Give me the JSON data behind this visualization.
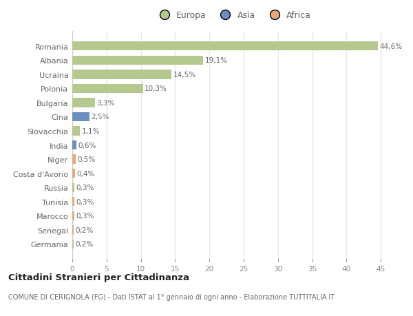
{
  "countries": [
    "Romania",
    "Albania",
    "Ucraina",
    "Polonia",
    "Bulgaria",
    "Cina",
    "Slovacchia",
    "India",
    "Niger",
    "Costa d'Avorio",
    "Russia",
    "Tunisia",
    "Marocco",
    "Senegal",
    "Germania"
  ],
  "values": [
    44.6,
    19.1,
    14.5,
    10.3,
    3.3,
    2.5,
    1.1,
    0.6,
    0.5,
    0.4,
    0.3,
    0.3,
    0.3,
    0.2,
    0.2
  ],
  "labels": [
    "44,6%",
    "19,1%",
    "14,5%",
    "10,3%",
    "3,3%",
    "2,5%",
    "1,1%",
    "0,6%",
    "0,5%",
    "0,4%",
    "0,3%",
    "0,3%",
    "0,3%",
    "0,2%",
    "0,2%"
  ],
  "categories": [
    "Europa",
    "Europa",
    "Europa",
    "Europa",
    "Europa",
    "Asia",
    "Europa",
    "Asia",
    "Africa",
    "Africa",
    "Europa",
    "Africa",
    "Africa",
    "Africa",
    "Europa"
  ],
  "colors": {
    "Europa": "#b5c98e",
    "Asia": "#6b8fbe",
    "Africa": "#e8a87c"
  },
  "legend_colors": {
    "Europa": "#b5c98e",
    "Asia": "#6b8fbe",
    "Africa": "#e8a87c"
  },
  "background_color": "#ffffff",
  "plot_area_color": "#ffffff",
  "grid_color": "#e8e8e8",
  "title": "Cittadini Stranieri per Cittadinanza",
  "subtitle": "COMUNE DI CERIGNOLA (FG) - Dati ISTAT al 1° gennaio di ogni anno - Elaborazione TUTTITALIA.IT",
  "xlim": [
    0,
    47
  ],
  "xticks": [
    0,
    5,
    10,
    15,
    20,
    25,
    30,
    35,
    40,
    45
  ],
  "bar_height": 0.65
}
